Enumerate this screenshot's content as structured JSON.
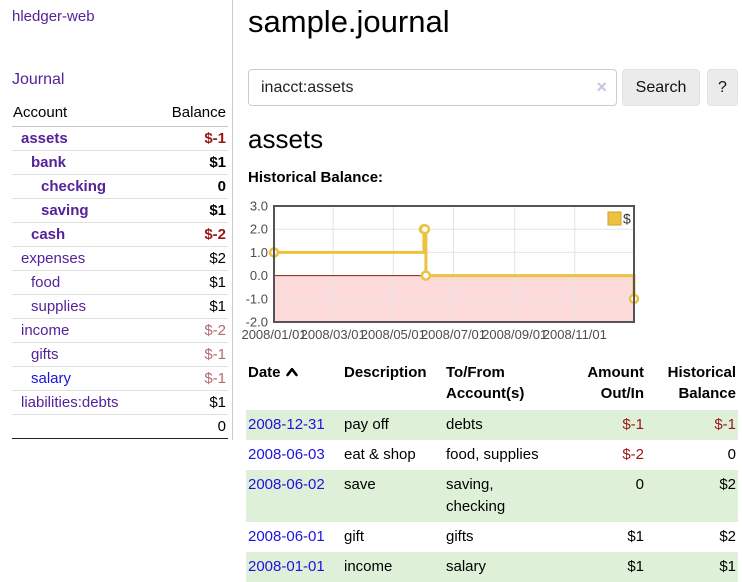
{
  "colors": {
    "link-purple": "#552299",
    "link-blue": "#1d12e0",
    "neg-strong": "#9a1616",
    "neg-faded": "#b36b72",
    "neg-table": "#9a1616",
    "row-green": "#dff0d8",
    "chart-line": "#edc240",
    "chart-line-border": "#cda22a",
    "chart-negative-fill": "#fcdada",
    "chart-zero-line": "#8b1a1a",
    "chart-grid": "#e4e4e4",
    "chart-border": "#545454"
  },
  "sidebar": {
    "app_title": "hledger-web",
    "nav": {
      "journal_label": "Journal"
    },
    "table": {
      "account_header": "Account",
      "balance_header": "Balance",
      "total": "0"
    },
    "accounts": [
      {
        "name": "assets",
        "depth": 0,
        "bold": true,
        "balance": "$-1",
        "negative": "strong"
      },
      {
        "name": "bank",
        "depth": 1,
        "bold": true,
        "balance": "$1"
      },
      {
        "name": "checking",
        "depth": 2,
        "bold": true,
        "balance": "0"
      },
      {
        "name": "saving",
        "depth": 2,
        "bold": true,
        "balance": "$1"
      },
      {
        "name": "cash",
        "depth": 1,
        "bold": true,
        "balance": "$-2",
        "negative": "strong"
      },
      {
        "name": "expenses",
        "depth": 0,
        "bold": false,
        "balance": "$2"
      },
      {
        "name": "food",
        "depth": 1,
        "bold": false,
        "balance": "$1"
      },
      {
        "name": "supplies",
        "depth": 1,
        "bold": false,
        "balance": "$1"
      },
      {
        "name": "income",
        "depth": 0,
        "bold": false,
        "balance": "$-2",
        "negative": "faded"
      },
      {
        "name": "gifts",
        "depth": 1,
        "bold": false,
        "balance": "$-1",
        "negative": "faded"
      },
      {
        "name": "salary",
        "depth": 1,
        "bold": false,
        "balance": "$-1",
        "negative": "faded",
        "unvisited": true
      },
      {
        "name": "liabilities:debts",
        "depth": 0,
        "bold": false,
        "balance": "$1"
      }
    ]
  },
  "main": {
    "title": "sample.journal",
    "search": {
      "value": "inacct:assets",
      "clear_icon": "×",
      "button_label": "Search",
      "help_label": "?"
    },
    "account_heading": "assets",
    "chart_label": "Historical Balance:"
  },
  "chart_data": {
    "type": "line",
    "step": true,
    "title": "Historical Balance",
    "xlabel": "",
    "ylabel": "",
    "xlim": [
      "2008-01-01",
      "2008-12-31"
    ],
    "ylim": [
      -2,
      3
    ],
    "yticks": [
      3,
      2,
      1,
      0,
      -1,
      -2
    ],
    "xticks": [
      {
        "date": "2008-01-01",
        "label": "2008/01/01"
      },
      {
        "date": "2008-03-01",
        "label": "2008/03/01"
      },
      {
        "date": "2008-05-01",
        "label": "2008/05/01"
      },
      {
        "date": "2008-07-01",
        "label": "2008/07/01"
      },
      {
        "date": "2008-09-01",
        "label": "2008/09/01"
      },
      {
        "date": "2008-11-01",
        "label": "2008/11/01"
      }
    ],
    "series": [
      {
        "name": "$",
        "points": [
          [
            "2008-01-01",
            1
          ],
          [
            "2008-06-01",
            2
          ],
          [
            "2008-06-02",
            2
          ],
          [
            "2008-06-03",
            0
          ],
          [
            "2008-12-31",
            -1
          ]
        ]
      }
    ],
    "legend_position": "top-right",
    "grid": true,
    "negative_region_shaded": true
  },
  "register": {
    "headers": {
      "date": "Date",
      "description": "Description",
      "accounts": "To/From Account(s)",
      "amount": "Amount Out/In",
      "balance": "Historical Balance"
    },
    "rows": [
      {
        "date": "2008-12-31",
        "description": "pay off",
        "accounts": "debts",
        "amount": "$-1",
        "balance": "$-1"
      },
      {
        "date": "2008-06-03",
        "description": "eat & shop",
        "accounts": "food, supplies",
        "amount": "$-2",
        "balance": "0"
      },
      {
        "date": "2008-06-02",
        "description": "save",
        "accounts": "saving, checking",
        "amount": "0",
        "balance": "$2"
      },
      {
        "date": "2008-06-01",
        "description": "gift",
        "accounts": "gifts",
        "amount": "$1",
        "balance": "$2"
      },
      {
        "date": "2008-01-01",
        "description": "income",
        "accounts": "salary",
        "amount": "$1",
        "balance": "$1"
      }
    ]
  }
}
